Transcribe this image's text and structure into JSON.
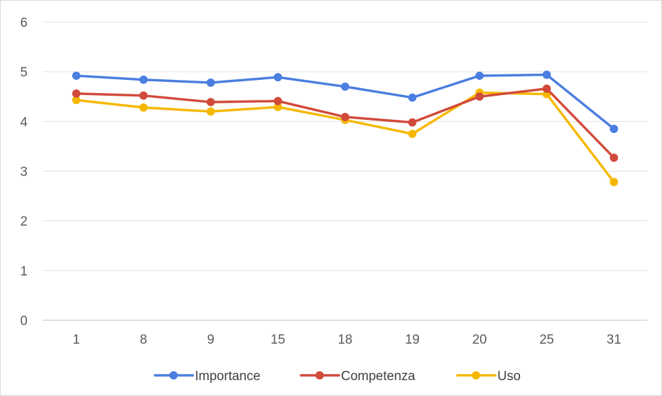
{
  "chart_data": {
    "type": "line",
    "categories": [
      "1",
      "8",
      "9",
      "15",
      "18",
      "19",
      "20",
      "25",
      "31"
    ],
    "ylim": [
      0,
      6
    ],
    "yticks": [
      "0",
      "1",
      "2",
      "3",
      "4",
      "5",
      "6"
    ],
    "grid": true,
    "legend": "bottom",
    "series": [
      {
        "name": "Importance",
        "color": "#4a7ee0",
        "values": [
          4.92,
          4.84,
          4.78,
          4.89,
          4.7,
          4.48,
          4.92,
          4.94,
          3.85
        ]
      },
      {
        "name": "Competenza",
        "color": "#d24a3a",
        "values": [
          4.56,
          4.52,
          4.39,
          4.41,
          4.09,
          3.98,
          4.5,
          4.66,
          3.27
        ]
      },
      {
        "name": "Uso",
        "color": "#f5b800",
        "values": [
          4.43,
          4.28,
          4.2,
          4.29,
          4.03,
          3.75,
          4.58,
          4.55,
          2.78
        ]
      }
    ]
  }
}
